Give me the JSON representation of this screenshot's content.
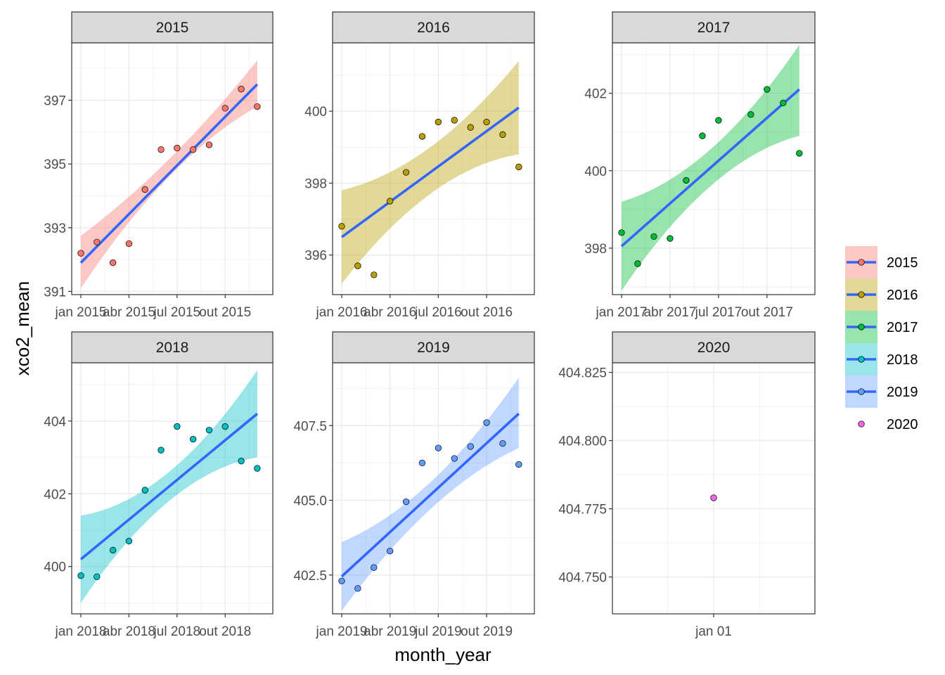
{
  "chart_data": {
    "type": "scatter",
    "xlabel": "month_year",
    "ylabel": "xco2_mean",
    "legend_position": "right",
    "panels": [
      {
        "title": "2015",
        "color": "#F8766D",
        "xlim": [
          0,
          11.4
        ],
        "ylim": [
          390.9,
          398.8
        ],
        "yticks": [
          391,
          393,
          395,
          397
        ],
        "xticks": [
          {
            "value": 0,
            "label": "jan 2015"
          },
          {
            "value": 3,
            "label": "abr 2015"
          },
          {
            "value": 6,
            "label": "jul 2015"
          },
          {
            "value": 9,
            "label": "out 2015"
          }
        ],
        "points": [
          {
            "x": 0,
            "y": 392.2
          },
          {
            "x": 1,
            "y": 392.55
          },
          {
            "x": 2,
            "y": 391.9
          },
          {
            "x": 3,
            "y": 392.5
          },
          {
            "x": 4,
            "y": 394.2
          },
          {
            "x": 5,
            "y": 395.45
          },
          {
            "x": 6,
            "y": 395.5
          },
          {
            "x": 7,
            "y": 395.45
          },
          {
            "x": 8,
            "y": 395.6
          },
          {
            "x": 9,
            "y": 396.75
          },
          {
            "x": 10,
            "y": 397.35
          },
          {
            "x": 11,
            "y": 396.8
          }
        ],
        "fit": {
          "start": 391.9,
          "end": 397.5,
          "band_start": [
            391.1,
            392.75
          ],
          "band_mid": [
            394.6,
            395.15
          ],
          "band_end": [
            396.8,
            398.25
          ]
        }
      },
      {
        "title": "2016",
        "color": "#B79F00",
        "xlim": [
          0,
          11.4
        ],
        "ylim": [
          394.9,
          401.9
        ],
        "yticks": [
          396,
          398,
          400
        ],
        "xticks": [
          {
            "value": 0,
            "label": "jan 2016"
          },
          {
            "value": 3,
            "label": "abr 2016"
          },
          {
            "value": 6,
            "label": "jul 2016"
          },
          {
            "value": 9,
            "label": "out 2016"
          }
        ],
        "points": [
          {
            "x": 0,
            "y": 396.8
          },
          {
            "x": 1,
            "y": 395.7
          },
          {
            "x": 2,
            "y": 395.45
          },
          {
            "x": 3,
            "y": 397.5
          },
          {
            "x": 4,
            "y": 398.3
          },
          {
            "x": 5,
            "y": 399.3
          },
          {
            "x": 6,
            "y": 399.7
          },
          {
            "x": 7,
            "y": 399.75
          },
          {
            "x": 8,
            "y": 399.55
          },
          {
            "x": 9,
            "y": 399.7
          },
          {
            "x": 10,
            "y": 399.35
          },
          {
            "x": 11,
            "y": 398.45
          }
        ],
        "fit": {
          "start": 396.5,
          "end": 400.1,
          "band_start": [
            395.2,
            397.8
          ],
          "band_mid": [
            397.7,
            399.0
          ],
          "band_end": [
            398.8,
            401.4
          ]
        }
      },
      {
        "title": "2017",
        "color": "#00BA38",
        "xlim": [
          0,
          11.4
        ],
        "ylim": [
          396.8,
          403.3
        ],
        "yticks": [
          398,
          400,
          402
        ],
        "xticks": [
          {
            "value": 0,
            "label": "jan 2017"
          },
          {
            "value": 3,
            "label": "abr 2017"
          },
          {
            "value": 6,
            "label": "jul 2017"
          },
          {
            "value": 9,
            "label": "out 2017"
          }
        ],
        "points": [
          {
            "x": 0,
            "y": 398.4
          },
          {
            "x": 1,
            "y": 397.6
          },
          {
            "x": 2,
            "y": 398.3
          },
          {
            "x": 3,
            "y": 398.25
          },
          {
            "x": 4,
            "y": 399.75
          },
          {
            "x": 5,
            "y": 400.9
          },
          {
            "x": 6,
            "y": 401.3
          },
          {
            "x": 8,
            "y": 401.45
          },
          {
            "x": 9,
            "y": 402.1
          },
          {
            "x": 10,
            "y": 401.75
          },
          {
            "x": 11,
            "y": 400.45
          }
        ],
        "fit": {
          "start": 398.05,
          "end": 402.1,
          "band_start": [
            396.9,
            399.2
          ],
          "band_mid": [
            399.6,
            400.55
          ],
          "band_end": [
            400.9,
            403.25
          ]
        }
      },
      {
        "title": "2018",
        "color": "#00BFC4",
        "xlim": [
          0,
          11.4
        ],
        "ylim": [
          398.7,
          405.6
        ],
        "yticks": [
          400,
          402,
          404
        ],
        "xticks": [
          {
            "value": 0,
            "label": "jan 2018"
          },
          {
            "value": 3,
            "label": "abr 2018"
          },
          {
            "value": 6,
            "label": "jul 2018"
          },
          {
            "value": 9,
            "label": "out 2018"
          }
        ],
        "points": [
          {
            "x": 0,
            "y": 399.75
          },
          {
            "x": 1,
            "y": 399.72
          },
          {
            "x": 2,
            "y": 400.45
          },
          {
            "x": 3,
            "y": 400.7
          },
          {
            "x": 4,
            "y": 402.1
          },
          {
            "x": 5,
            "y": 403.2
          },
          {
            "x": 6,
            "y": 403.85
          },
          {
            "x": 7,
            "y": 403.5
          },
          {
            "x": 8,
            "y": 403.75
          },
          {
            "x": 9,
            "y": 403.85
          },
          {
            "x": 10,
            "y": 402.9
          },
          {
            "x": 11,
            "y": 402.7
          }
        ],
        "fit": {
          "start": 400.2,
          "end": 404.2,
          "band_start": [
            399.0,
            401.4
          ],
          "band_mid": [
            401.8,
            402.6
          ],
          "band_end": [
            403.0,
            405.4
          ]
        }
      },
      {
        "title": "2019",
        "color": "#619CFF",
        "xlim": [
          0,
          11.4
        ],
        "ylim": [
          401.2,
          409.6
        ],
        "yticks": [
          402.5,
          405.0,
          407.5
        ],
        "ytick_labels": [
          "402.5",
          "405.0",
          "407.5"
        ],
        "xticks": [
          {
            "value": 0,
            "label": "jan 2019"
          },
          {
            "value": 3,
            "label": "abr 2019"
          },
          {
            "value": 6,
            "label": "jul 2019"
          },
          {
            "value": 9,
            "label": "out 2019"
          }
        ],
        "points": [
          {
            "x": 0,
            "y": 402.3
          },
          {
            "x": 1,
            "y": 402.05
          },
          {
            "x": 2,
            "y": 402.75
          },
          {
            "x": 3,
            "y": 403.3
          },
          {
            "x": 4,
            "y": 404.95
          },
          {
            "x": 5,
            "y": 406.25
          },
          {
            "x": 6,
            "y": 406.75
          },
          {
            "x": 7,
            "y": 406.4
          },
          {
            "x": 8,
            "y": 406.8
          },
          {
            "x": 9,
            "y": 407.6
          },
          {
            "x": 10,
            "y": 406.9
          },
          {
            "x": 11,
            "y": 406.2
          }
        ],
        "fit": {
          "start": 402.45,
          "end": 407.9,
          "band_start": [
            401.3,
            403.6
          ],
          "band_mid": [
            404.7,
            405.6
          ],
          "band_end": [
            406.75,
            409.1
          ]
        }
      },
      {
        "title": "2020",
        "color": "#F564E3",
        "xlim": [
          -1,
          1
        ],
        "ylim": [
          404.7365,
          404.8285
        ],
        "yticks": [
          404.75,
          404.775,
          404.8,
          404.825
        ],
        "ytick_labels": [
          "404.750",
          "404.775",
          "404.800",
          "404.825"
        ],
        "xticks": [
          {
            "value": 0,
            "label": "jan 01"
          }
        ],
        "points": [
          {
            "x": 0,
            "y": 404.779
          }
        ],
        "fit": null
      }
    ],
    "legend": [
      {
        "label": "2015",
        "color": "#F8766D",
        "has_fit": true
      },
      {
        "label": "2016",
        "color": "#B79F00",
        "has_fit": true
      },
      {
        "label": "2017",
        "color": "#00BA38",
        "has_fit": true
      },
      {
        "label": "2018",
        "color": "#00BFC4",
        "has_fit": true
      },
      {
        "label": "2019",
        "color": "#619CFF",
        "has_fit": true
      },
      {
        "label": "2020",
        "color": "#F564E3",
        "has_fit": false
      }
    ],
    "fit_line_color": "#3366FF"
  }
}
